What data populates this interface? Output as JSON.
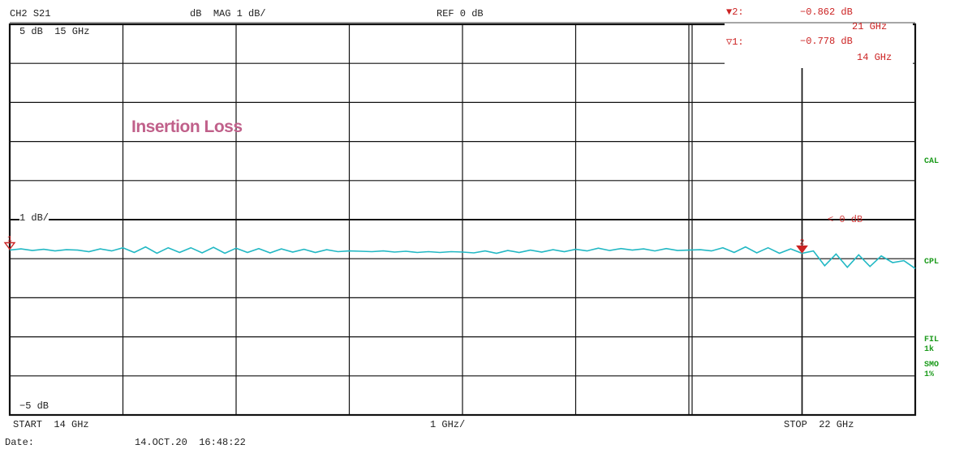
{
  "header": {
    "channel": "CH2",
    "param": "S21",
    "unit": "dB",
    "format": "MAG",
    "scale": "1 dB/",
    "ref": "REF 0 dB"
  },
  "grid_labels": {
    "top_left": "5 dB  15 GHz",
    "ref_level": "1 dB/",
    "bottom_left": "−5 dB",
    "ref_marker": "< 0 dB"
  },
  "markers": [
    {
      "id": "2",
      "label": "2:",
      "value": "−0.862 dB",
      "freq": "21 GHz",
      "x_ghz": 21,
      "y_db": -0.862
    },
    {
      "id": "1",
      "label": "1:",
      "value": "−0.778 dB",
      "freq": "14 GHz",
      "x_ghz": 14,
      "y_db": -0.778
    }
  ],
  "footer": {
    "start": "START  14 GHz",
    "span": "1 GHz/",
    "stop": "STOP  22 GHz",
    "date_label": "Date:",
    "date_value": "14.OCT.20  16:48:22"
  },
  "side_labels": {
    "cal": "CAL",
    "cpl": "CPL",
    "fil": "FIL",
    "fil_val": "1k",
    "smo": "SMO",
    "smo_val": "1%"
  },
  "annotation": "Insertion Loss",
  "colors": {
    "trace": "#22b8c4",
    "marker": "#cc2222",
    "grid": "#111111",
    "status": "#1a9a1a"
  },
  "chart_data": {
    "type": "line",
    "title": "",
    "xlabel": "",
    "ylabel": "",
    "xlim": [
      14,
      22
    ],
    "ylim": [
      -5,
      5
    ],
    "x_divisions": 8,
    "y_divisions": 10,
    "series": [
      {
        "x": [
          14.0,
          14.1,
          14.2,
          14.3,
          14.4,
          14.5,
          14.6,
          14.7,
          14.8,
          14.9,
          15.0,
          15.1,
          15.2,
          15.3,
          15.4,
          15.5,
          15.6,
          15.7,
          15.8,
          15.9,
          16.0,
          16.1,
          16.2,
          16.3,
          16.4,
          16.5,
          16.6,
          16.7,
          16.8,
          16.9,
          17.0,
          17.1,
          17.2,
          17.3,
          17.4,
          17.5,
          17.6,
          17.7,
          17.8,
          17.9,
          18.0,
          18.1,
          18.2,
          18.3,
          18.4,
          18.5,
          18.6,
          18.7,
          18.8,
          18.9,
          19.0,
          19.1,
          19.2,
          19.3,
          19.4,
          19.5,
          19.6,
          19.7,
          19.8,
          19.9,
          20.0,
          20.1,
          20.2,
          20.3,
          20.4,
          20.5,
          20.6,
          20.7,
          20.8,
          20.9,
          21.0,
          21.1,
          21.2,
          21.3,
          21.4,
          21.5,
          21.6,
          21.7,
          21.8,
          21.9,
          22.0
        ],
        "y": [
          -0.78,
          -0.75,
          -0.79,
          -0.76,
          -0.8,
          -0.77,
          -0.78,
          -0.82,
          -0.75,
          -0.8,
          -0.72,
          -0.84,
          -0.7,
          -0.86,
          -0.72,
          -0.84,
          -0.72,
          -0.85,
          -0.71,
          -0.86,
          -0.73,
          -0.84,
          -0.74,
          -0.85,
          -0.75,
          -0.83,
          -0.76,
          -0.84,
          -0.77,
          -0.82,
          -0.8,
          -0.81,
          -0.82,
          -0.8,
          -0.83,
          -0.81,
          -0.84,
          -0.82,
          -0.84,
          -0.82,
          -0.83,
          -0.85,
          -0.8,
          -0.86,
          -0.79,
          -0.84,
          -0.78,
          -0.83,
          -0.77,
          -0.82,
          -0.76,
          -0.8,
          -0.73,
          -0.79,
          -0.74,
          -0.78,
          -0.75,
          -0.8,
          -0.74,
          -0.79,
          -0.78,
          -0.77,
          -0.8,
          -0.72,
          -0.84,
          -0.7,
          -0.85,
          -0.72,
          -0.86,
          -0.75,
          -0.86,
          -0.8,
          -1.18,
          -0.88,
          -1.22,
          -0.9,
          -1.2,
          -0.93,
          -1.1,
          -1.05,
          -1.25
        ]
      }
    ]
  }
}
